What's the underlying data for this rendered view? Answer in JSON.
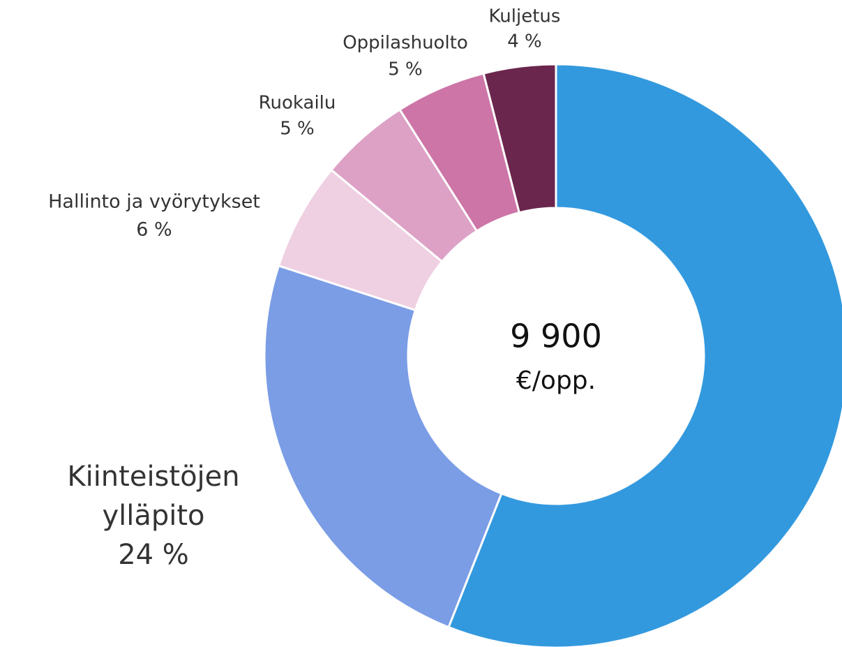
{
  "chart_data": {
    "type": "donut",
    "categories": [
      null,
      "Kiinteistöjen ylläpito",
      "Hallinto ja vyörytykset",
      "Ruokailu",
      "Oppilashuolto",
      "Kuljetus"
    ],
    "values": [
      56,
      24,
      6,
      5,
      5,
      4
    ],
    "value_labels": [
      null,
      "24 %",
      "6 %",
      "5 %",
      "5 %",
      "4 %"
    ],
    "colors": [
      "#3399de",
      "#7b9de6",
      "#efd0e2",
      "#dda1c6",
      "#cd75a7",
      "#6b264d"
    ],
    "center_text": [
      "9 900",
      "€/opp."
    ]
  }
}
